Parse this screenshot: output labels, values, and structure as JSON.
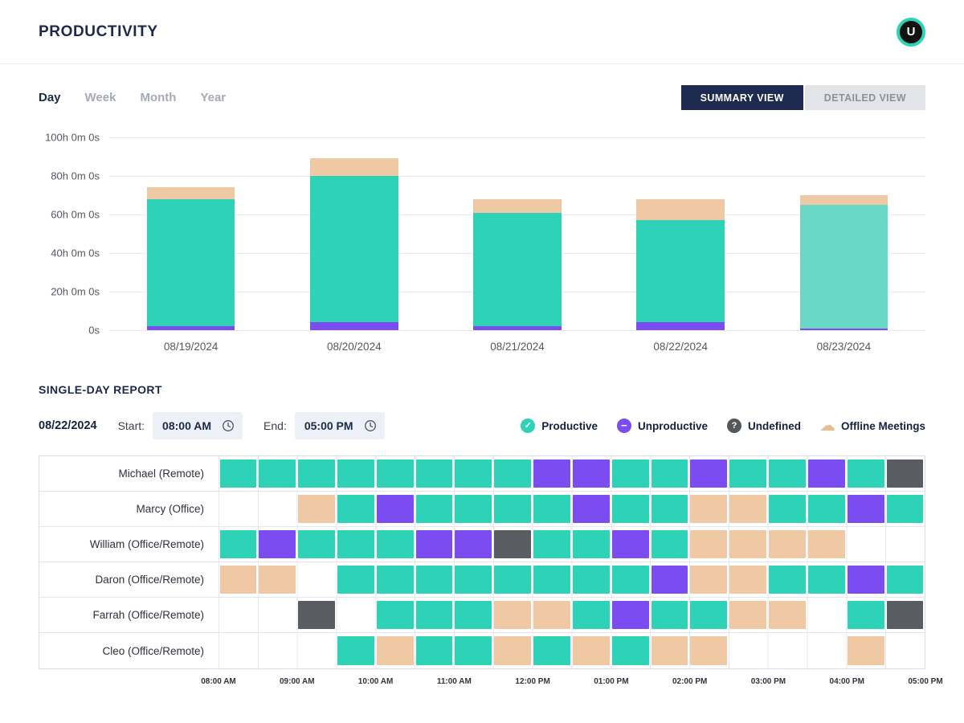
{
  "header": {
    "title": "PRODUCTIVITY",
    "avatar_initial": "U"
  },
  "tabs": {
    "items": [
      {
        "label": "Day",
        "active": true
      },
      {
        "label": "Week",
        "active": false
      },
      {
        "label": "Month",
        "active": false
      },
      {
        "label": "Year",
        "active": false
      }
    ]
  },
  "view_toggle": {
    "options": [
      {
        "label": "SUMMARY VIEW",
        "active": true
      },
      {
        "label": "DETAILED VIEW",
        "active": false
      }
    ]
  },
  "chart_data": {
    "type": "bar",
    "stacked": true,
    "title": "",
    "categories": [
      "08/19/2024",
      "08/20/2024",
      "08/21/2024",
      "08/22/2024",
      "08/23/2024"
    ],
    "series": [
      {
        "name": "Unproductive",
        "color": "#7b4df0",
        "values": [
          2,
          4,
          2,
          4,
          1
        ]
      },
      {
        "name": "Productive",
        "color": "#2ed3b7",
        "values": [
          66,
          76,
          59,
          53,
          64
        ]
      },
      {
        "name": "Offline Meetings",
        "color": "#efc9a4",
        "values": [
          6,
          9,
          7,
          11,
          5
        ]
      }
    ],
    "faded_bar_index": 4,
    "faded_productive_color": "#6ad8c4",
    "unit": "hours",
    "ylim": [
      0,
      100
    ],
    "y_ticks": [
      "100h 0m 0s",
      "80h 0m 0s",
      "60h 0m 0s",
      "40h 0m 0s",
      "20h 0m 0s",
      "0s"
    ],
    "grid": true,
    "legend_position": "none"
  },
  "report": {
    "section_title": "SINGLE-DAY REPORT",
    "date": "08/22/2024",
    "start_label": "Start:",
    "start_value": "08:00 AM",
    "end_label": "End:",
    "end_value": "05:00 PM",
    "legend": [
      {
        "key": "productive",
        "glyph": "✓",
        "label": "Productive"
      },
      {
        "key": "unproductive",
        "glyph": "−",
        "label": "Unproductive"
      },
      {
        "key": "undefined",
        "glyph": "?",
        "label": "Undefined"
      },
      {
        "key": "offline",
        "glyph": "☁",
        "label": "Offline Meetings"
      }
    ],
    "timeline": {
      "slots_per_row": 18,
      "slot_minutes": 30,
      "time_labels": [
        "08:00 AM",
        "09:00 AM",
        "10:00 AM",
        "11:00 AM",
        "12:00 PM",
        "01:00 PM",
        "02:00 PM",
        "03:00 PM",
        "04:00 PM",
        "05:00 PM"
      ],
      "cell_states": {
        "P": "productive",
        "U": "unproductive",
        "M": "offline-meeting",
        "X": "undefined",
        "": "empty"
      },
      "rows": [
        {
          "name": "Michael (Remote)",
          "cells": [
            "P",
            "P",
            "P",
            "P",
            "P",
            "P",
            "P",
            "P",
            "U",
            "U",
            "P",
            "P",
            "U",
            "P",
            "P",
            "U",
            "P",
            "X"
          ]
        },
        {
          "name": "Marcy (Office)",
          "cells": [
            "",
            "",
            "M",
            "P",
            "U",
            "P",
            "P",
            "P",
            "P",
            "U",
            "P",
            "P",
            "M",
            "M",
            "P",
            "P",
            "U",
            "P"
          ]
        },
        {
          "name": "William (Office/Remote)",
          "cells": [
            "P",
            "U",
            "P",
            "P",
            "P",
            "U",
            "U",
            "X",
            "P",
            "P",
            "U",
            "P",
            "M",
            "M",
            "M",
            "M",
            "",
            ""
          ]
        },
        {
          "name": "Daron (Office/Remote)",
          "cells": [
            "M",
            "M",
            "",
            "P",
            "P",
            "P",
            "P",
            "P",
            "P",
            "P",
            "P",
            "U",
            "M",
            "M",
            "P",
            "P",
            "U",
            "P"
          ]
        },
        {
          "name": "Farrah (Office/Remote)",
          "cells": [
            "",
            "",
            "X",
            "",
            "P",
            "P",
            "P",
            "M",
            "M",
            "P",
            "U",
            "P",
            "P",
            "M",
            "M",
            "",
            "P",
            "X"
          ]
        },
        {
          "name": "Cleo (Office/Remote)",
          "cells": [
            "",
            "",
            "",
            "P",
            "M",
            "P",
            "P",
            "M",
            "P",
            "M",
            "P",
            "M",
            "M",
            "",
            "",
            "",
            "M",
            ""
          ]
        }
      ]
    }
  },
  "colors": {
    "productive": "#2ed3b7",
    "unproductive": "#7b4df0",
    "offline_meeting": "#efc9a4",
    "undefined": "#595d61",
    "navy": "#1b2a4a",
    "active_button_bg": "#1d2b50"
  }
}
